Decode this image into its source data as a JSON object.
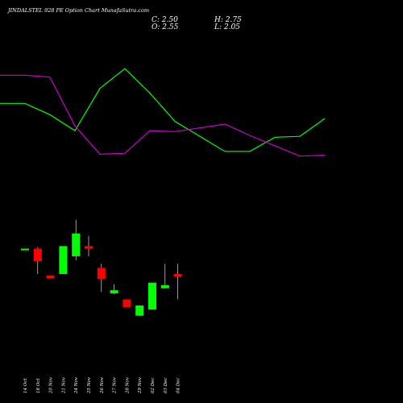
{
  "header": {
    "title": "JINDALSTEL 928 PE Option Chart MunafaSutra.com",
    "close": "C: 2.50",
    "open": "O: 2.55",
    "high": "H: 2.75",
    "low": "L: 2.05"
  },
  "chart_data": {
    "type": "candlestick",
    "title": "JINDALSTEL 928 PE Option Chart MunafaSutra.com",
    "colors": {
      "up": "#00ff00",
      "down": "#ff0000",
      "line_upper": "#00ff00",
      "line_lower": "#cc00cc",
      "background": "#000000"
    },
    "categories": [
      "14 Oct",
      "18 Oct",
      "20 Nov",
      "21 Nov",
      "24 Nov",
      "25 Nov",
      "26 Nov",
      "27 Nov",
      "28 Nov",
      "29 Nov",
      "02 Dec",
      "03 Dec",
      "04 Dec"
    ],
    "candles": [
      {
        "open": 3.05,
        "high": 3.05,
        "low": 3.05,
        "close": 3.05
      },
      {
        "open": 3.05,
        "high": 3.08,
        "low": 2.55,
        "close": 2.8
      },
      {
        "open": 2.52,
        "high": 2.52,
        "low": 2.47,
        "close": 2.47
      },
      {
        "open": 2.55,
        "high": 3.1,
        "low": 2.55,
        "close": 3.1
      },
      {
        "open": 2.9,
        "high": 3.62,
        "low": 2.82,
        "close": 3.35
      },
      {
        "open": 3.1,
        "high": 3.3,
        "low": 2.9,
        "close": 3.05
      },
      {
        "open": 2.67,
        "high": 2.75,
        "low": 2.2,
        "close": 2.45
      },
      {
        "open": 2.17,
        "high": 2.35,
        "low": 2.15,
        "close": 2.23
      },
      {
        "open": 2.05,
        "high": 2.05,
        "low": 1.9,
        "close": 1.9
      },
      {
        "open": 1.73,
        "high": 1.93,
        "low": 1.72,
        "close": 1.93
      },
      {
        "open": 1.85,
        "high": 2.38,
        "low": 1.85,
        "close": 2.38
      },
      {
        "open": 2.27,
        "high": 2.75,
        "low": 2.27,
        "close": 2.33
      },
      {
        "open": 2.55,
        "high": 2.75,
        "low": 2.05,
        "close": 2.5
      }
    ],
    "upper_line": [
      100,
      100,
      88,
      71,
      116,
      137,
      111,
      81,
      65,
      49,
      49,
      64,
      65,
      84
    ],
    "lower_line": [
      130,
      130,
      128,
      76,
      46,
      47,
      71,
      70,
      74,
      78,
      66,
      55,
      44,
      45
    ],
    "price_range": [
      1.2,
      3.9
    ]
  }
}
